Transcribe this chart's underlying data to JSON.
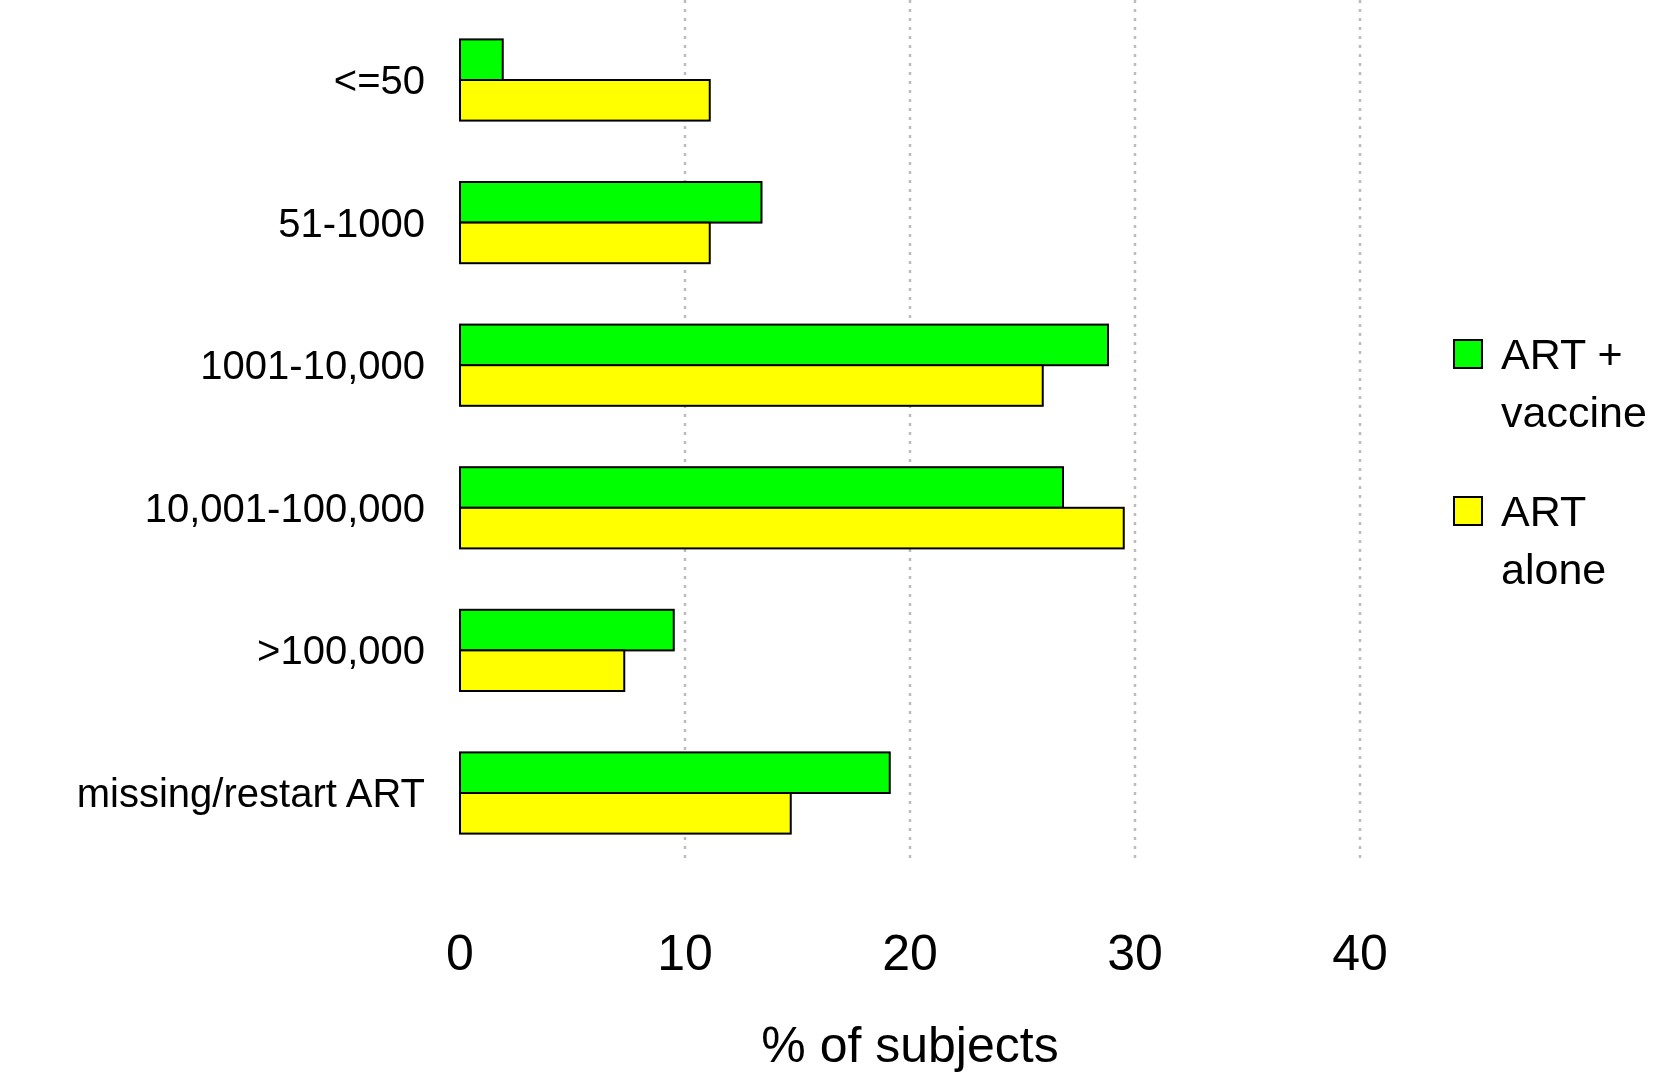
{
  "chart_data": {
    "type": "bar",
    "orientation": "horizontal",
    "xlabel": "% of subjects",
    "categories": [
      "<=50",
      "51-1000",
      "1001-10,000",
      "10,001-100,000",
      ">100,000",
      "missing/restart ART"
    ],
    "series": [
      {
        "name": "ART + vaccine",
        "color": "#00ff00",
        "values": [
          1.9,
          13.4,
          28.8,
          26.8,
          9.5,
          19.1
        ]
      },
      {
        "name": "ART alone",
        "color": "#ffff00",
        "values": [
          11.1,
          11.1,
          25.9,
          29.5,
          7.3,
          14.7
        ]
      }
    ],
    "xlim": [
      0,
      40
    ],
    "xticks": [
      0,
      10,
      20,
      30,
      40
    ],
    "grid": "x",
    "legend": "right"
  }
}
